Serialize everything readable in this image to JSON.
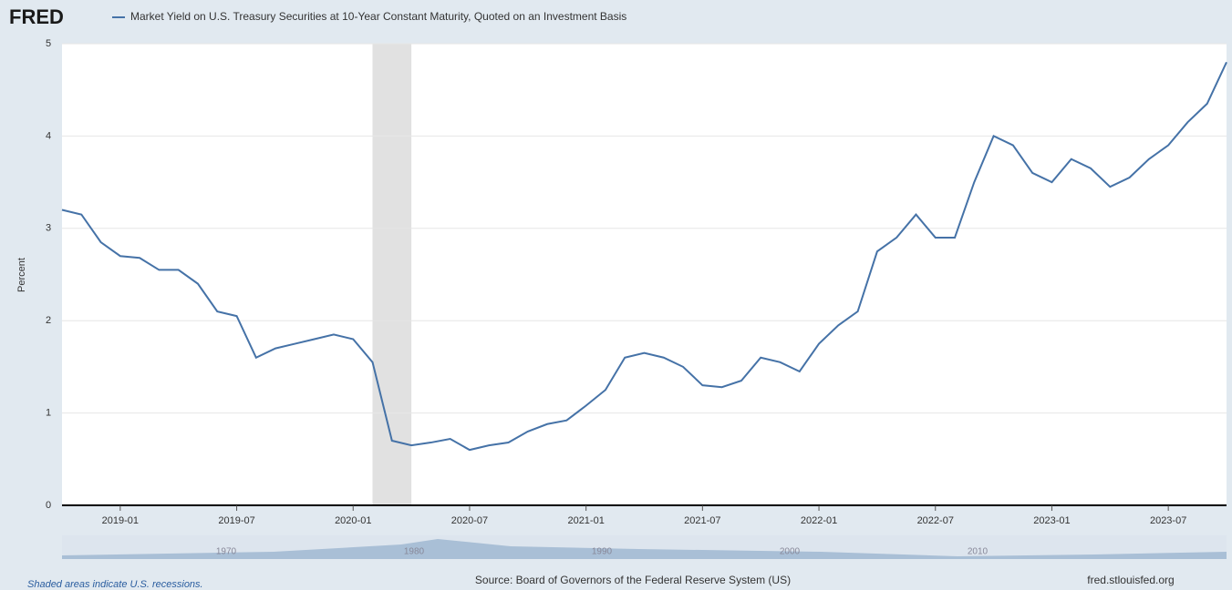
{
  "chart_data": {
    "type": "line",
    "logo": "FRED",
    "ylabel": "Percent",
    "series": [
      {
        "name": "Market Yield on U.S. Treasury Securities at 10-Year Constant Maturity, Quoted on an Investment Basis",
        "color": "#4572a7",
        "values": [
          3.2,
          3.15,
          2.85,
          2.7,
          2.68,
          2.55,
          2.55,
          2.4,
          2.1,
          2.05,
          1.6,
          1.7,
          1.75,
          1.8,
          1.85,
          1.8,
          1.55,
          0.7,
          0.65,
          0.68,
          0.72,
          0.6,
          0.65,
          0.68,
          0.8,
          0.88,
          0.92,
          1.08,
          1.25,
          1.6,
          1.65,
          1.6,
          1.5,
          1.3,
          1.28,
          1.35,
          1.6,
          1.55,
          1.45,
          1.75,
          1.95,
          2.1,
          2.75,
          2.9,
          3.15,
          2.9,
          2.9,
          3.5,
          4.0,
          3.9,
          3.6,
          3.5,
          3.75,
          3.65,
          3.45,
          3.55,
          3.75,
          3.9,
          4.15,
          4.35,
          4.8
        ]
      }
    ],
    "x": [
      "2018-10",
      "2018-11",
      "2018-12",
      "2019-01",
      "2019-02",
      "2019-03",
      "2019-04",
      "2019-05",
      "2019-06",
      "2019-07",
      "2019-08",
      "2019-09",
      "2019-10",
      "2019-11",
      "2019-12",
      "2020-01",
      "2020-02",
      "2020-03",
      "2020-04",
      "2020-05",
      "2020-06",
      "2020-07",
      "2020-08",
      "2020-09",
      "2020-10",
      "2020-11",
      "2020-12",
      "2021-01",
      "2021-02",
      "2021-03",
      "2021-04",
      "2021-05",
      "2021-06",
      "2021-07",
      "2021-08",
      "2021-09",
      "2021-10",
      "2021-11",
      "2021-12",
      "2022-01",
      "2022-02",
      "2022-03",
      "2022-04",
      "2022-05",
      "2022-06",
      "2022-07",
      "2022-08",
      "2022-09",
      "2022-10",
      "2022-11",
      "2022-12",
      "2023-01",
      "2023-02",
      "2023-03",
      "2023-04",
      "2023-05",
      "2023-06",
      "2023-07",
      "2023-08",
      "2023-09",
      "2023-10"
    ],
    "xlim": [
      "2018-10",
      "2023-10"
    ],
    "xticks": [
      "2019-01",
      "2019-07",
      "2020-01",
      "2020-07",
      "2021-01",
      "2021-07",
      "2022-01",
      "2022-07",
      "2023-01",
      "2023-07"
    ],
    "ylim": [
      0,
      5
    ],
    "yticks": [
      0,
      1,
      2,
      3,
      4,
      5
    ],
    "grid": true,
    "recessions": [
      [
        "2020-02",
        "2020-04"
      ]
    ],
    "recession_note": "Shaded areas indicate U.S. recessions.",
    "source": "Source: Board of Governors of the Federal Reserve System (US)",
    "site": "fred.stlouisfed.org",
    "navigator_labels": [
      "1970",
      "1980",
      "1990",
      "2000",
      "2010"
    ]
  }
}
